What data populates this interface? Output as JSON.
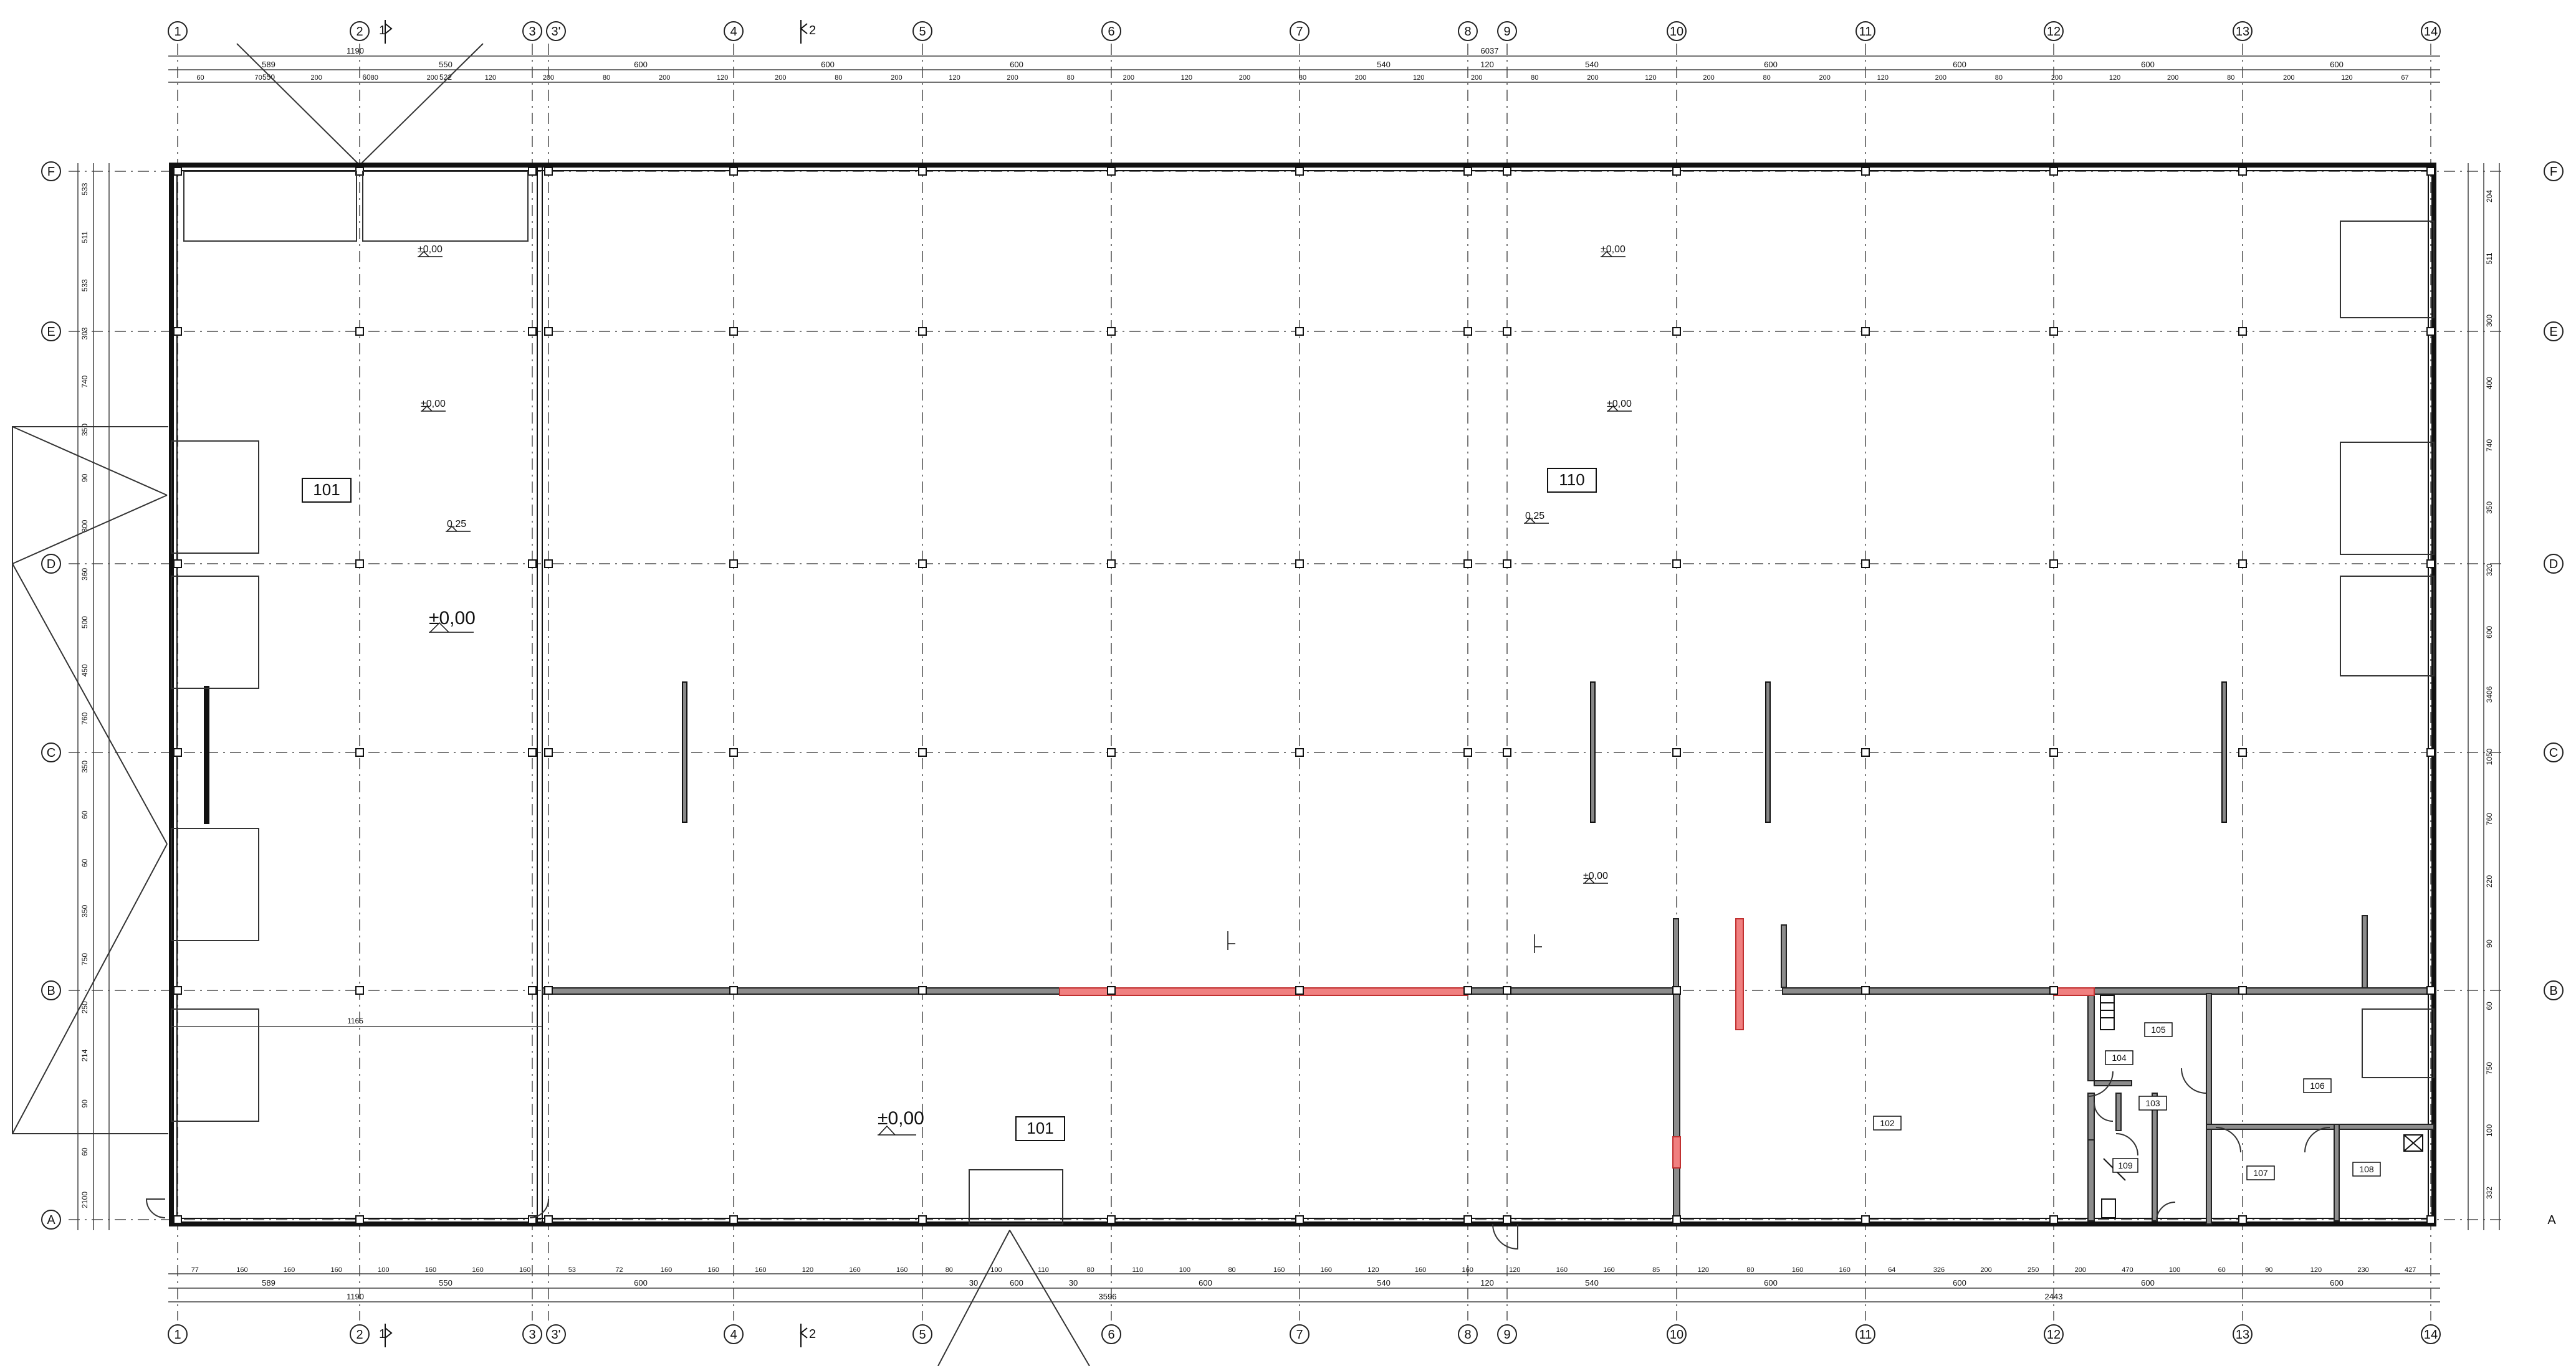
{
  "plan": {
    "axes_x": [
      "1",
      "2",
      "3",
      "3'",
      "4",
      "5",
      "6",
      "7",
      "8",
      "9",
      "10",
      "11",
      "12",
      "13",
      "14"
    ],
    "axes_y": [
      "F",
      "E",
      "D",
      "C",
      "B",
      "A"
    ],
    "axis_a_right_label": "A",
    "section_marks": [
      {
        "label": "1"
      },
      {
        "label": "2"
      }
    ],
    "rooms": [
      {
        "id": "r101a",
        "label": "101"
      },
      {
        "id": "r110",
        "label": "110"
      },
      {
        "id": "r101b",
        "label": "101"
      },
      {
        "id": "r102",
        "label": "102"
      },
      {
        "id": "r103",
        "label": "103"
      },
      {
        "id": "r104",
        "label": "104"
      },
      {
        "id": "r105",
        "label": "105"
      },
      {
        "id": "r106",
        "label": "106"
      },
      {
        "id": "r107",
        "label": "107"
      },
      {
        "id": "r108",
        "label": "108"
      },
      {
        "id": "r109",
        "label": "109"
      }
    ],
    "levels": [
      {
        "id": "lv1",
        "text": "±0,00"
      },
      {
        "id": "lv2",
        "text": "±0,00"
      },
      {
        "id": "lv3",
        "text": "0,25"
      },
      {
        "id": "lv4",
        "text": "±0,00"
      },
      {
        "id": "lv5",
        "text": "±0,00"
      },
      {
        "id": "lv6",
        "text": "±0,00"
      },
      {
        "id": "lv7",
        "text": "0,25"
      },
      {
        "id": "lv8",
        "text": "±0,00"
      },
      {
        "id": "lv9",
        "text": "±0,00"
      }
    ],
    "dims_top_overall": [
      {
        "id": "t_a",
        "text": "1190"
      },
      {
        "id": "t_b",
        "text": "6037"
      }
    ],
    "dims_top_mid": [
      "589",
      "550",
      "600",
      "600",
      "600",
      "540",
      "120",
      "540",
      "600",
      "600",
      "600",
      "600"
    ],
    "dims_top_detail": [
      "60",
      "70",
      "200",
      "80",
      "200",
      "120",
      "200",
      "80",
      "200",
      "120",
      "200",
      "80",
      "200",
      "120",
      "200",
      "80",
      "200",
      "120",
      "200",
      "80",
      "200",
      "120",
      "200",
      "80",
      "200",
      "120",
      "200",
      "80",
      "200",
      "120",
      "200",
      "80",
      "200",
      "120",
      "200",
      "80",
      "200",
      "120",
      "67"
    ],
    "dims_top_small": [
      "550",
      "522",
      "60"
    ],
    "dims_bottom_detail": [
      "77",
      "160",
      "160",
      "160",
      "100",
      "160",
      "160",
      "160",
      "53",
      "72",
      "160",
      "160",
      "160",
      "120",
      "160",
      "160",
      "80",
      "100",
      "110",
      "80",
      "110",
      "100",
      "80",
      "160",
      "160",
      "120",
      "160",
      "160",
      "120",
      "160",
      "160",
      "85",
      "120",
      "80",
      "160",
      "160",
      "64",
      "326",
      "200",
      "250",
      "200",
      "470",
      "100",
      "60",
      "90",
      "120",
      "230",
      "427"
    ],
    "dims_bottom_mid": [
      "589",
      "550",
      "600",
      "30",
      "600",
      "30",
      "600",
      "540",
      "120",
      "540",
      "600",
      "600",
      "600",
      "600"
    ],
    "dims_bottom_overall": [
      {
        "id": "b_a",
        "text": "1190"
      },
      {
        "id": "b_b",
        "text": "3596"
      },
      {
        "id": "b_c",
        "text": "2443"
      }
    ],
    "dims_left": [
      "533",
      "511",
      "533",
      "303",
      "740",
      "350",
      "90",
      "300",
      "360",
      "500",
      "450",
      "760",
      "350",
      "60",
      "60",
      "350",
      "750",
      "250",
      "214",
      "90",
      "60",
      "2100"
    ],
    "dims_right": [
      "204",
      "511",
      "300",
      "400",
      "740",
      "350",
      "320",
      "600",
      "3406",
      "1050",
      "760",
      "220",
      "90",
      "60",
      "750",
      "100",
      "332"
    ],
    "dim_inner": "1165"
  }
}
